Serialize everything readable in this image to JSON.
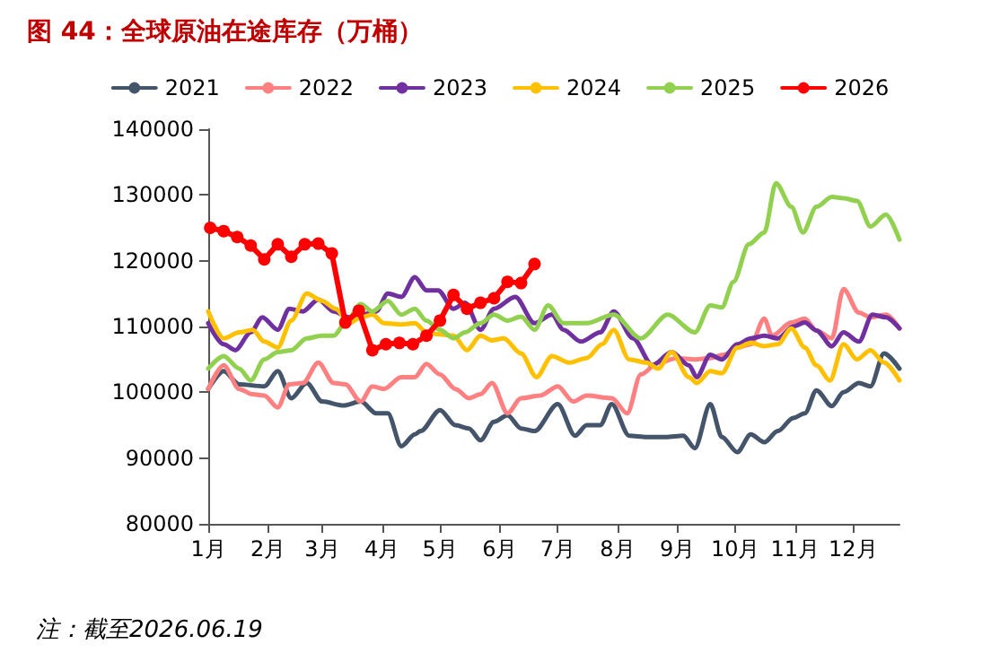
{
  "chart_data": {
    "type": "line",
    "title": "图 44：全球原油在途库存（万桶）",
    "annotations": [
      "注：截至2026.06.19"
    ],
    "xlim": [
      "--01-01",
      "--12-25"
    ],
    "xticks": [
      {
        "value": "--01-01",
        "label": "1月"
      },
      {
        "value": "--02-01",
        "label": "2月"
      },
      {
        "value": "--03-01",
        "label": "3月"
      },
      {
        "value": "--04-01",
        "label": "4月"
      },
      {
        "value": "--05-01",
        "label": "5月"
      },
      {
        "value": "--06-01",
        "label": "6月"
      },
      {
        "value": "--07-01",
        "label": "7月"
      },
      {
        "value": "--08-01",
        "label": "8月"
      },
      {
        "value": "--09-01",
        "label": "9月"
      },
      {
        "value": "--10-01",
        "label": "10月"
      },
      {
        "value": "--11-01",
        "label": "11月"
      },
      {
        "value": "--12-01",
        "label": "12月"
      }
    ],
    "ylim": [
      80000,
      140000
    ],
    "yticks": [
      80000,
      90000,
      100000,
      110000,
      120000,
      130000,
      140000
    ],
    "grid": false,
    "legend": "top",
    "marker": "none",
    "line_style": "solid",
    "series": [
      {
        "name": "2021",
        "color": "#44546a",
        "x": [
          "--01-01",
          "--01-09",
          "--01-17",
          "--01-30",
          "--02-06",
          "--02-13",
          "--02-21",
          "--03-01",
          "--03-12",
          "--03-21",
          "--03-29",
          "--04-04",
          "--04-11",
          "--04-18",
          "--04-21",
          "--05-01",
          "--05-09",
          "--05-16",
          "--05-22",
          "--05-29",
          "--06-05",
          "--06-12",
          "--06-19",
          "--07-01",
          "--07-10",
          "--07-16",
          "--07-23",
          "--07-29",
          "--08-07",
          "--08-16",
          "--08-26",
          "--09-04",
          "--09-10",
          "--09-18",
          "--09-24",
          "--10-02",
          "--10-09",
          "--10-16",
          "--10-23",
          "--10-31",
          "--11-06",
          "--11-12",
          "--11-20",
          "--11-26",
          "--12-04",
          "--12-10",
          "--12-17",
          "--12-25"
        ],
        "values": [
          100500,
          103200,
          101200,
          100900,
          103200,
          99100,
          101400,
          98600,
          98000,
          98600,
          96800,
          96800,
          91800,
          93600,
          94100,
          97300,
          95000,
          94500,
          92700,
          95500,
          96500,
          94500,
          94100,
          98200,
          93400,
          95000,
          95000,
          98200,
          93400,
          93200,
          93200,
          93400,
          91500,
          98200,
          93200,
          90900,
          93600,
          92400,
          94100,
          96100,
          96800,
          100300,
          97900,
          100000,
          101400,
          100900,
          105900,
          103600
        ]
      },
      {
        "name": "2022",
        "color": "#ff8080",
        "x": [
          "--01-01",
          "--01-09",
          "--01-17",
          "--01-24",
          "--01-30",
          "--02-06",
          "--02-12",
          "--02-19",
          "--02-27",
          "--03-07",
          "--03-13",
          "--03-21",
          "--03-27",
          "--04-02",
          "--04-11",
          "--04-18",
          "--04-24",
          "--05-01",
          "--05-09",
          "--05-16",
          "--05-22",
          "--05-28",
          "--06-05",
          "--06-12",
          "--06-22",
          "--07-01",
          "--07-09",
          "--07-16",
          "--07-29",
          "--08-06",
          "--08-13",
          "--08-22",
          "--09-01",
          "--09-10",
          "--09-18",
          "--09-25",
          "--10-02",
          "--10-09",
          "--10-16",
          "--10-20",
          "--10-30",
          "--11-06",
          "--11-12",
          "--11-20",
          "--11-26",
          "--12-04",
          "--12-10",
          "--12-18",
          "--12-25"
        ],
        "values": [
          100500,
          104100,
          100500,
          99700,
          99500,
          97700,
          101200,
          101400,
          104500,
          101400,
          101200,
          98600,
          100900,
          100500,
          102300,
          102300,
          104300,
          102700,
          100500,
          99100,
          99700,
          101400,
          96800,
          99100,
          99500,
          100900,
          98600,
          99500,
          99100,
          96800,
          102700,
          104500,
          105200,
          105000,
          105200,
          105700,
          106800,
          107300,
          111200,
          108600,
          110600,
          111200,
          109400,
          108200,
          115700,
          112100,
          111400,
          111800,
          109700
        ]
      },
      {
        "name": "2023",
        "color": "#7030a0",
        "x": [
          "--01-01",
          "--01-09",
          "--01-15",
          "--01-23",
          "--01-29",
          "--02-06",
          "--02-12",
          "--02-19",
          "--02-27",
          "--03-07",
          "--03-15",
          "--03-22",
          "--03-29",
          "--04-04",
          "--04-11",
          "--04-18",
          "--04-24",
          "--04-30",
          "--05-08",
          "--05-14",
          "--05-22",
          "--05-29",
          "--06-09",
          "--06-19",
          "--06-28",
          "--07-04",
          "--07-13",
          "--07-23",
          "--07-30",
          "--08-09",
          "--08-19",
          "--08-29",
          "--09-07",
          "--09-11",
          "--09-18",
          "--09-24",
          "--10-02",
          "--10-09",
          "--10-16",
          "--10-23",
          "--10-31",
          "--11-06",
          "--11-12",
          "--11-20",
          "--11-26",
          "--12-04",
          "--12-11",
          "--12-18",
          "--12-25"
        ],
        "values": [
          110500,
          107300,
          106400,
          109100,
          111400,
          109500,
          112700,
          112300,
          114100,
          112300,
          111400,
          111800,
          112300,
          115000,
          114500,
          117500,
          115500,
          115500,
          112700,
          113600,
          109500,
          112700,
          114500,
          110500,
          111800,
          109500,
          107700,
          109100,
          112300,
          108200,
          104100,
          106100,
          104100,
          102300,
          105700,
          105000,
          107300,
          108200,
          108600,
          108200,
          110000,
          110600,
          109400,
          107000,
          109100,
          107700,
          111800,
          111400,
          109700
        ]
      },
      {
        "name": "2024",
        "color": "#ffc000",
        "x": [
          "--01-01",
          "--01-09",
          "--01-17",
          "--01-24",
          "--01-30",
          "--02-06",
          "--02-13",
          "--02-21",
          "--03-01",
          "--03-08",
          "--03-15",
          "--03-21",
          "--03-27",
          "--04-02",
          "--04-11",
          "--04-18",
          "--04-24",
          "--05-01",
          "--05-08",
          "--05-15",
          "--05-22",
          "--05-28",
          "--06-03",
          "--06-12",
          "--06-20",
          "--06-28",
          "--07-07",
          "--07-16",
          "--07-24",
          "--07-30",
          "--08-07",
          "--08-16",
          "--08-22",
          "--08-29",
          "--09-07",
          "--09-11",
          "--09-18",
          "--09-24",
          "--10-02",
          "--10-09",
          "--10-16",
          "--10-23",
          "--10-30",
          "--11-06",
          "--11-12",
          "--11-19",
          "--11-26",
          "--12-03",
          "--12-10",
          "--12-17",
          "--12-25"
        ],
        "values": [
          112300,
          108200,
          109100,
          109500,
          107700,
          106800,
          110900,
          115000,
          113900,
          112700,
          110500,
          111400,
          111800,
          110500,
          110300,
          110500,
          109100,
          108800,
          108600,
          106400,
          108600,
          107900,
          108200,
          105900,
          102300,
          105500,
          104500,
          105200,
          107300,
          109500,
          105000,
          104500,
          103600,
          106100,
          102300,
          101400,
          103200,
          102900,
          106800,
          107500,
          107000,
          107300,
          109700,
          106800,
          104100,
          101800,
          107300,
          105000,
          106400,
          104500,
          101800
        ]
      },
      {
        "name": "2025",
        "color": "#92d050",
        "x": [
          "--01-01",
          "--01-09",
          "--01-17",
          "--01-23",
          "--01-30",
          "--02-06",
          "--02-13",
          "--02-21",
          "--03-01",
          "--03-07",
          "--03-13",
          "--03-21",
          "--03-27",
          "--04-04",
          "--04-11",
          "--04-18",
          "--04-24",
          "--05-01",
          "--05-08",
          "--05-14",
          "--05-22",
          "--05-29",
          "--06-05",
          "--06-12",
          "--06-19",
          "--06-26",
          "--07-04",
          "--07-16",
          "--07-30",
          "--08-13",
          "--08-27",
          "--09-10",
          "--09-18",
          "--09-24",
          "--09-30",
          "--10-08",
          "--10-16",
          "--10-22",
          "--10-30",
          "--11-05",
          "--11-12",
          "--11-20",
          "--11-26",
          "--12-03",
          "--12-10",
          "--12-18",
          "--12-25"
        ],
        "values": [
          103600,
          105500,
          103600,
          101800,
          105000,
          106100,
          106400,
          108200,
          108600,
          108600,
          110500,
          113400,
          112300,
          113900,
          111800,
          112700,
          110900,
          109500,
          108200,
          109100,
          110500,
          111800,
          110900,
          111500,
          109500,
          113200,
          110500,
          110500,
          111800,
          108200,
          111800,
          109100,
          113200,
          112900,
          116800,
          122500,
          124300,
          131800,
          128200,
          124300,
          128200,
          129700,
          129500,
          129100,
          125200,
          127000,
          123200
        ]
      },
      {
        "name": "2026",
        "color": "#ff0000",
        "marker": "circle",
        "x": [
          "--01-02",
          "--01-09",
          "--01-16",
          "--01-23",
          "--01-30",
          "--02-06",
          "--02-13",
          "--02-20",
          "--02-27",
          "--03-06",
          "--03-13",
          "--03-20",
          "--03-27",
          "--04-03",
          "--04-10",
          "--04-17",
          "--04-24",
          "--05-01",
          "--05-08",
          "--05-15",
          "--05-22",
          "--05-29",
          "--06-05",
          "--06-12",
          "--06-19"
        ],
        "values": [
          125000,
          124500,
          123600,
          122300,
          120200,
          122500,
          120600,
          122500,
          122600,
          121100,
          110600,
          112400,
          106400,
          107300,
          107500,
          107300,
          108600,
          110900,
          114800,
          112700,
          113600,
          114300,
          116800,
          116600,
          119500
        ]
      }
    ]
  }
}
